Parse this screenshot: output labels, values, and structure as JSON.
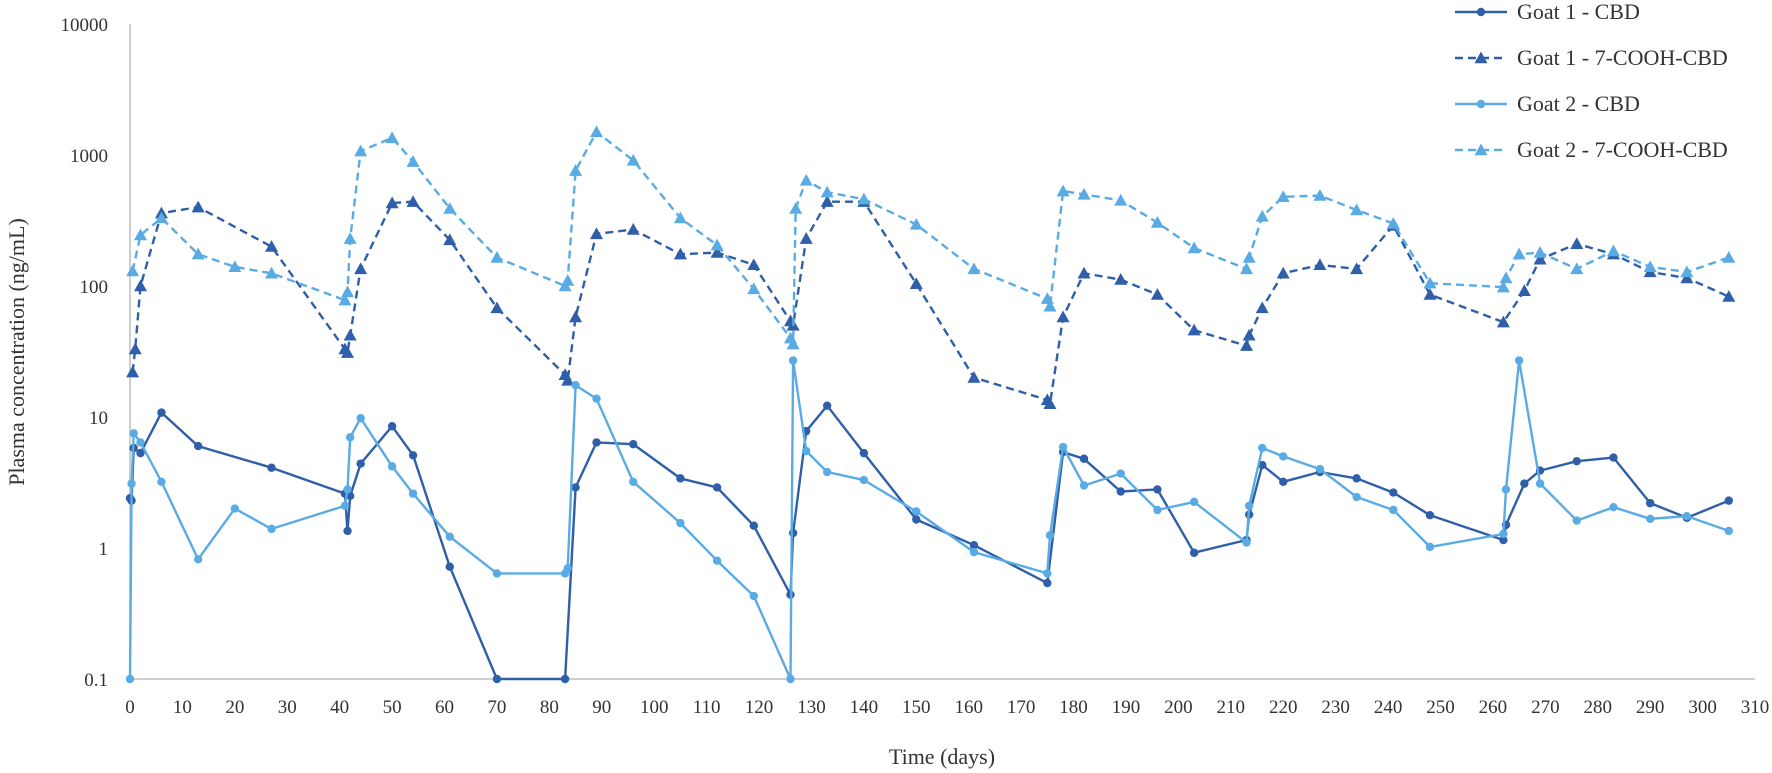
{
  "chart_data": {
    "type": "line",
    "title": "",
    "xlabel": "Time (days)",
    "ylabel": "Plasma concentration (ng/mL)",
    "xlim": [
      0,
      310
    ],
    "ylim": [
      0.1,
      10000
    ],
    "yscale": "log",
    "grid": false,
    "legend_position": "top-right",
    "x_ticks": [
      0,
      10,
      20,
      30,
      40,
      50,
      60,
      70,
      80,
      90,
      100,
      110,
      120,
      130,
      140,
      150,
      160,
      170,
      180,
      190,
      200,
      210,
      220,
      230,
      240,
      250,
      260,
      270,
      280,
      290,
      300,
      310
    ],
    "y_ticks": [
      {
        "value": 0.1,
        "label": "0.1"
      },
      {
        "value": 1,
        "label": "1"
      },
      {
        "value": 10,
        "label": "10"
      },
      {
        "value": 100,
        "label": "100"
      },
      {
        "value": 1000,
        "label": "1000"
      },
      {
        "value": 10000,
        "label": "10000"
      }
    ],
    "series": [
      {
        "name": "Goat 1 - CBD",
        "color": "#2e5fa8",
        "dash": "solid",
        "marker": "circle",
        "points": [
          [
            0,
            2.4
          ],
          [
            0.3,
            2.3
          ],
          [
            0.7,
            5.8
          ],
          [
            2,
            5.3
          ],
          [
            6,
            10.8
          ],
          [
            13,
            6.0
          ],
          [
            27,
            4.1
          ],
          [
            41,
            2.6
          ],
          [
            41.5,
            1.35
          ],
          [
            42,
            2.5
          ],
          [
            44,
            4.4
          ],
          [
            50,
            8.5
          ],
          [
            54,
            5.1
          ],
          [
            61,
            0.72
          ],
          [
            70,
            0.1
          ],
          [
            83,
            0.1
          ],
          [
            85,
            2.9
          ],
          [
            89,
            6.4
          ],
          [
            96,
            6.2
          ],
          [
            105,
            3.4
          ],
          [
            112,
            2.9
          ],
          [
            119,
            1.48
          ],
          [
            126,
            0.44
          ],
          [
            126.5,
            1.3
          ],
          [
            129,
            7.8
          ],
          [
            133,
            12.2
          ],
          [
            140,
            5.3
          ],
          [
            150,
            1.65
          ],
          [
            161,
            1.05
          ],
          [
            175,
            0.54
          ],
          [
            178,
            5.4
          ],
          [
            182,
            4.8
          ],
          [
            189,
            2.7
          ],
          [
            196,
            2.8
          ],
          [
            203,
            0.92
          ],
          [
            213,
            1.15
          ],
          [
            213.5,
            1.8
          ],
          [
            216,
            4.3
          ],
          [
            220,
            3.2
          ],
          [
            227,
            3.8
          ],
          [
            234,
            3.4
          ],
          [
            241,
            2.65
          ],
          [
            248,
            1.78
          ],
          [
            262,
            1.15
          ],
          [
            262.5,
            1.5
          ],
          [
            266,
            3.1
          ],
          [
            269,
            3.9
          ],
          [
            276,
            4.6
          ],
          [
            283,
            4.9
          ],
          [
            290,
            2.2
          ],
          [
            297,
            1.7
          ],
          [
            305,
            2.3
          ]
        ]
      },
      {
        "name": "Goat 1 - 7-COOH-CBD",
        "color": "#2e5fa8",
        "dash": "dashed",
        "marker": "triangle",
        "points": [
          [
            0.5,
            22
          ],
          [
            1,
            33
          ],
          [
            2,
            100
          ],
          [
            6,
            360
          ],
          [
            13,
            400
          ],
          [
            27,
            200
          ],
          [
            41,
            33
          ],
          [
            41.5,
            31
          ],
          [
            42,
            42
          ],
          [
            44,
            135
          ],
          [
            50,
            430
          ],
          [
            54,
            440
          ],
          [
            61,
            225
          ],
          [
            70,
            68
          ],
          [
            83,
            21
          ],
          [
            83.5,
            19
          ],
          [
            85,
            58
          ],
          [
            89,
            250
          ],
          [
            96,
            270
          ],
          [
            105,
            175
          ],
          [
            112,
            180
          ],
          [
            119,
            145
          ],
          [
            126,
            54
          ],
          [
            126.5,
            50
          ],
          [
            129,
            230
          ],
          [
            133,
            440
          ],
          [
            140,
            440
          ],
          [
            150,
            104
          ],
          [
            161,
            20
          ],
          [
            175,
            13.5
          ],
          [
            175.5,
            12.6
          ],
          [
            178,
            58
          ],
          [
            182,
            125
          ],
          [
            189,
            112
          ],
          [
            196,
            86
          ],
          [
            203,
            46
          ],
          [
            213,
            35
          ],
          [
            213.5,
            42
          ],
          [
            216,
            68
          ],
          [
            220,
            125
          ],
          [
            227,
            145
          ],
          [
            234,
            135
          ],
          [
            241,
            290
          ],
          [
            248,
            86
          ],
          [
            262,
            53
          ],
          [
            266,
            92
          ],
          [
            269,
            160
          ],
          [
            276,
            210
          ],
          [
            283,
            175
          ],
          [
            290,
            128
          ],
          [
            297,
            115
          ],
          [
            305,
            83
          ]
        ]
      },
      {
        "name": "Goat 2 - CBD",
        "color": "#5aabe4",
        "dash": "solid",
        "marker": "circle",
        "points": [
          [
            0,
            0.1
          ],
          [
            0.3,
            3.1
          ],
          [
            0.7,
            7.5
          ],
          [
            2,
            6.4
          ],
          [
            6,
            3.2
          ],
          [
            13,
            0.82
          ],
          [
            20,
            2.0
          ],
          [
            27,
            1.4
          ],
          [
            41,
            2.1
          ],
          [
            41.5,
            2.8
          ],
          [
            42,
            7.0
          ],
          [
            44,
            9.8
          ],
          [
            50,
            4.2
          ],
          [
            54,
            2.6
          ],
          [
            61,
            1.22
          ],
          [
            70,
            0.64
          ],
          [
            83,
            0.64
          ],
          [
            83.5,
            0.7
          ],
          [
            85,
            17.5
          ],
          [
            89,
            13.8
          ],
          [
            96,
            3.2
          ],
          [
            105,
            1.55
          ],
          [
            112,
            0.8
          ],
          [
            119,
            0.43
          ],
          [
            126,
            0.1
          ],
          [
            126.5,
            27
          ],
          [
            129,
            5.5
          ],
          [
            133,
            3.8
          ],
          [
            140,
            3.3
          ],
          [
            150,
            1.9
          ],
          [
            161,
            0.93
          ],
          [
            175,
            0.64
          ],
          [
            175.5,
            1.25
          ],
          [
            178,
            5.9
          ],
          [
            182,
            3.0
          ],
          [
            189,
            3.7
          ],
          [
            196,
            1.95
          ],
          [
            203,
            2.25
          ],
          [
            213,
            1.1
          ],
          [
            213.5,
            2.1
          ],
          [
            216,
            5.8
          ],
          [
            220,
            5.0
          ],
          [
            227,
            4.0
          ],
          [
            234,
            2.45
          ],
          [
            241,
            1.95
          ],
          [
            248,
            1.02
          ],
          [
            262,
            1.28
          ],
          [
            262.5,
            2.8
          ],
          [
            265,
            27
          ],
          [
            269,
            3.1
          ],
          [
            276,
            1.62
          ],
          [
            283,
            2.05
          ],
          [
            290,
            1.67
          ],
          [
            297,
            1.75
          ],
          [
            305,
            1.35
          ]
        ]
      },
      {
        "name": "Goat 2 - 7-COOH-CBD",
        "color": "#5aabe4",
        "dash": "dashed",
        "marker": "triangle",
        "points": [
          [
            0.5,
            130
          ],
          [
            2,
            245
          ],
          [
            6,
            330
          ],
          [
            13,
            175
          ],
          [
            20,
            140
          ],
          [
            27,
            125
          ],
          [
            41,
            78
          ],
          [
            41.5,
            90
          ],
          [
            42,
            230
          ],
          [
            44,
            1070
          ],
          [
            50,
            1350
          ],
          [
            54,
            890
          ],
          [
            61,
            390
          ],
          [
            70,
            165
          ],
          [
            83,
            100
          ],
          [
            83.5,
            110
          ],
          [
            85,
            760
          ],
          [
            89,
            1500
          ],
          [
            96,
            910
          ],
          [
            105,
            330
          ],
          [
            112,
            205
          ],
          [
            119,
            95
          ],
          [
            126,
            40
          ],
          [
            126.5,
            36
          ],
          [
            127,
            390
          ],
          [
            129,
            640
          ],
          [
            133,
            520
          ],
          [
            140,
            460
          ],
          [
            150,
            295
          ],
          [
            161,
            135
          ],
          [
            175,
            80
          ],
          [
            175.5,
            70
          ],
          [
            178,
            530
          ],
          [
            182,
            500
          ],
          [
            189,
            450
          ],
          [
            196,
            305
          ],
          [
            203,
            195
          ],
          [
            213,
            135
          ],
          [
            213.5,
            165
          ],
          [
            216,
            340
          ],
          [
            220,
            480
          ],
          [
            227,
            490
          ],
          [
            234,
            380
          ],
          [
            241,
            300
          ],
          [
            248,
            105
          ],
          [
            262,
            98
          ],
          [
            262.5,
            115
          ],
          [
            265,
            175
          ],
          [
            269,
            180
          ],
          [
            276,
            135
          ],
          [
            283,
            185
          ],
          [
            290,
            140
          ],
          [
            297,
            128
          ],
          [
            305,
            165
          ]
        ]
      }
    ]
  }
}
